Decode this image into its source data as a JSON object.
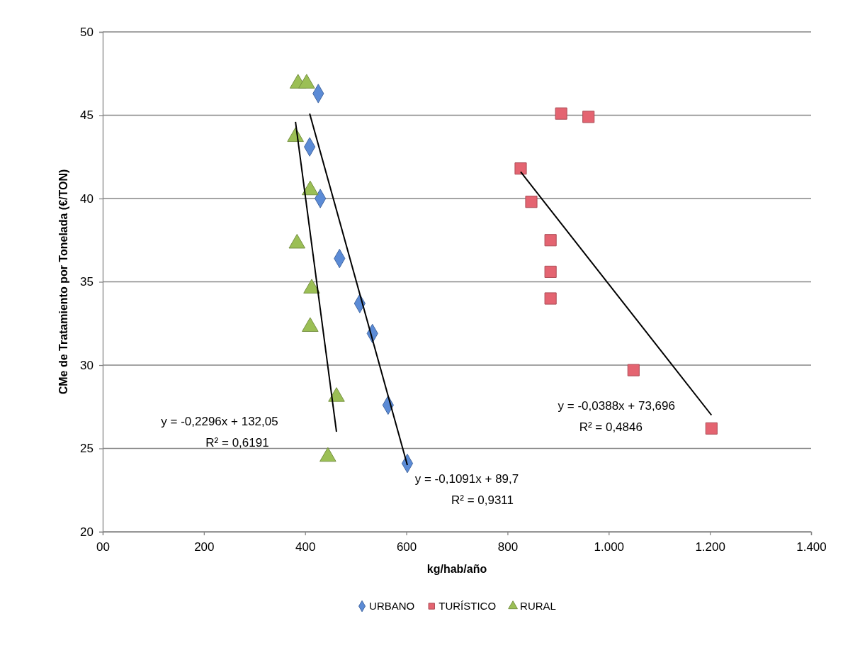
{
  "chart_data": {
    "type": "scatter",
    "xlabel": "kg/hab/año",
    "ylabel": "CMe de Tratamiento por Tonelada  (€/TON)",
    "xlim": [
      0,
      1400
    ],
    "xticks": [
      {
        "value": 0,
        "label": "00"
      },
      200,
      400,
      600,
      800,
      {
        "value": 1000,
        "label": "1.000"
      },
      {
        "value": 1200,
        "label": "1.200"
      },
      {
        "value": 1400,
        "label": "1.400"
      }
    ],
    "ylim": [
      20,
      50
    ],
    "yticks": [
      20,
      25,
      30,
      35,
      40,
      45,
      50
    ],
    "grid": "y",
    "legend": "bottom",
    "series": [
      {
        "name": "URBANO",
        "color": "#5b8bd6",
        "marker": "diamond",
        "x": [
          426,
          409,
          430,
          468,
          508,
          533,
          564,
          602
        ],
        "values": [
          46.3,
          43.1,
          40.0,
          36.4,
          33.7,
          31.9,
          27.6,
          24.1
        ]
      },
      {
        "name": "TURÍSTICO",
        "color": "#e46471",
        "marker": "square",
        "x": [
          906,
          960,
          826,
          847,
          885,
          885,
          885,
          1049,
          1203
        ],
        "values": [
          45.1,
          44.9,
          41.8,
          39.8,
          37.5,
          35.6,
          34.0,
          29.7,
          26.2
        ]
      },
      {
        "name": "RURAL",
        "color": "#9bbf55",
        "marker": "triangle",
        "x": [
          386,
          403,
          381,
          410,
          384,
          413,
          410,
          462,
          445
        ],
        "values": [
          46.9,
          46.9,
          43.7,
          40.5,
          37.3,
          34.6,
          32.3,
          28.1,
          24.5
        ]
      },
      {
        "type": "line",
        "color": "#000000",
        "marker": "none",
        "x": [
          381,
          462
        ],
        "values": [
          44.6,
          26.0
        ]
      },
      {
        "type": "line",
        "color": "#000000",
        "marker": "none",
        "x": [
          409,
          602
        ],
        "values": [
          45.1,
          24.0
        ]
      },
      {
        "type": "line",
        "color": "#000000",
        "marker": "none",
        "x": [
          826,
          1203
        ],
        "values": [
          41.6,
          27.0
        ]
      }
    ],
    "annotations": [
      "y = -0,2296x + 132,05",
      "R² = 0,6191",
      "y = -0,1091x + 89,7",
      "R² = 0,9311",
      "y = -0,0388x + 73,696",
      "R² = 0,4846"
    ]
  }
}
